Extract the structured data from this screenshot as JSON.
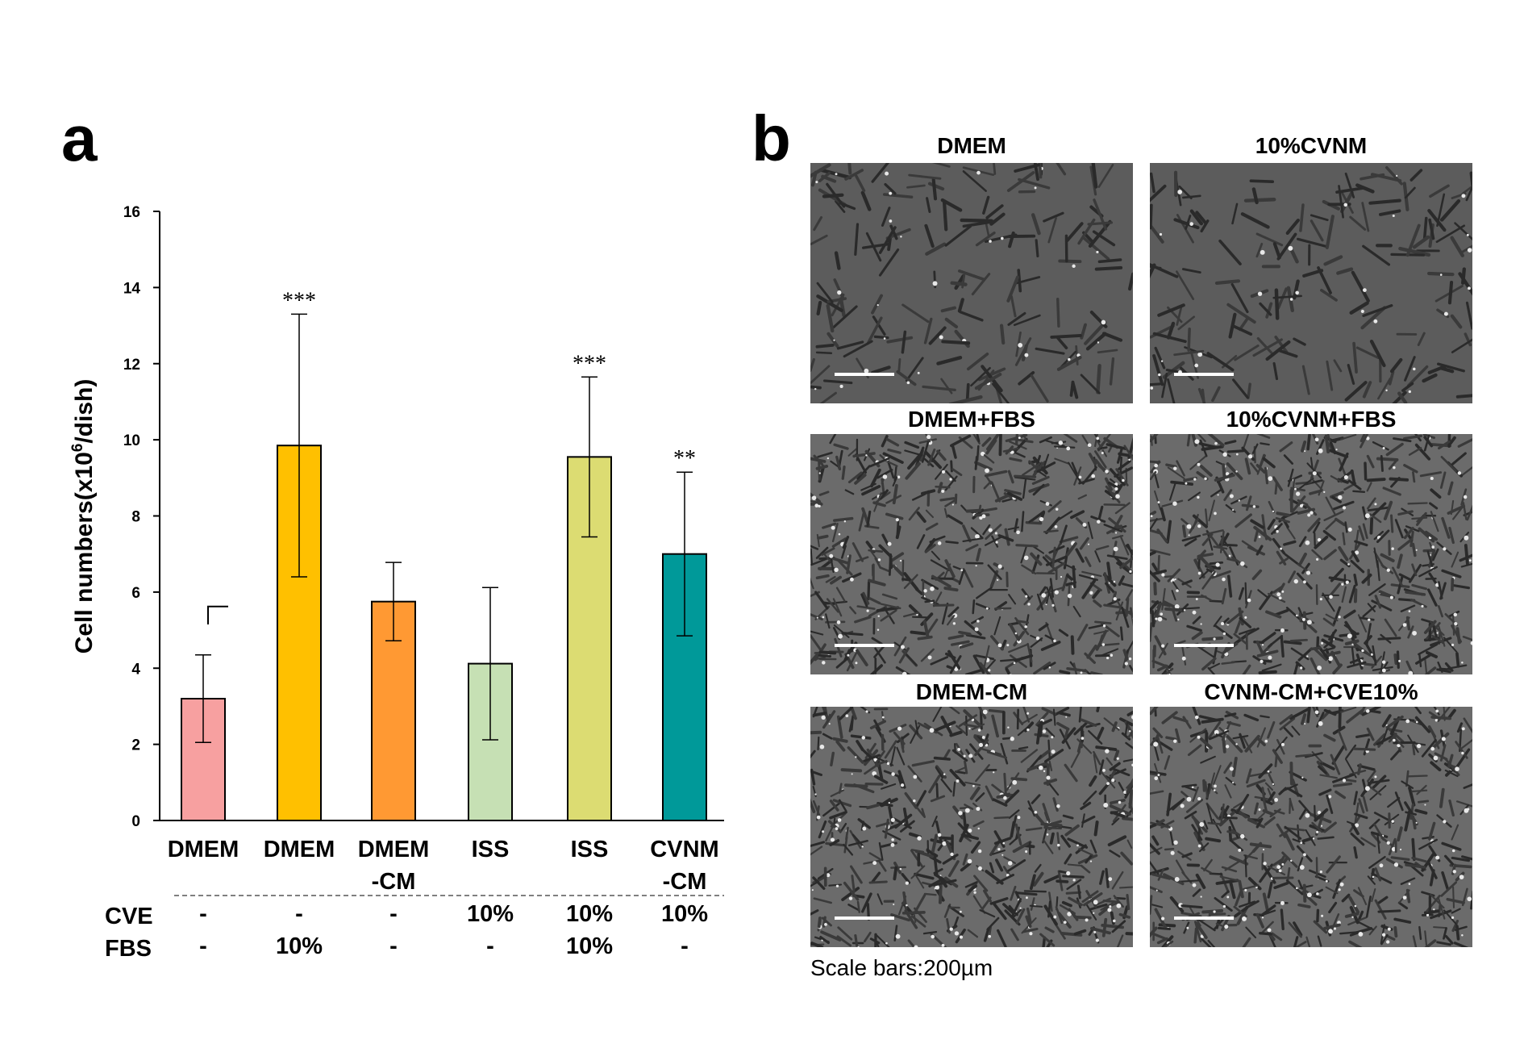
{
  "panel_a": {
    "label": "a"
  },
  "panel_b": {
    "label": "b",
    "images": [
      {
        "title": "DMEM",
        "style": "sparse"
      },
      {
        "title": "10%CVNM",
        "style": "sparse"
      },
      {
        "title": "DMEM+FBS",
        "style": "dense"
      },
      {
        "title": "10%CVNM+FBS",
        "style": "dense"
      },
      {
        "title": "DMEM-CM",
        "style": "dense"
      },
      {
        "title": "CVNM-CM+CVE10%",
        "style": "dense"
      }
    ],
    "scale_caption": "Scale bars:200µm"
  },
  "chart_data": {
    "type": "bar",
    "title": "",
    "ylabel_prefix": "Cell numbers(x10",
    "ylabel_sup": "6",
    "ylabel_suffix": "/dish)",
    "ylim": [
      0,
      16
    ],
    "yticks": [
      0,
      2,
      4,
      6,
      8,
      10,
      12,
      14,
      16
    ],
    "categories": [
      {
        "lines": [
          "DMEM"
        ]
      },
      {
        "lines": [
          "DMEM"
        ]
      },
      {
        "lines": [
          "DMEM",
          "-CM"
        ]
      },
      {
        "lines": [
          "ISS"
        ]
      },
      {
        "lines": [
          "ISS"
        ]
      },
      {
        "lines": [
          "CVNM",
          "-CM"
        ]
      }
    ],
    "values": [
      3.2,
      9.85,
      5.75,
      4.12,
      9.55,
      7.0
    ],
    "errors": [
      1.15,
      3.45,
      1.03,
      2.0,
      2.1,
      2.15
    ],
    "colors": [
      "#f7a0a0",
      "#ffc000",
      "#ff9933",
      "#c6e0b4",
      "#dcdc72",
      "#009999"
    ],
    "significance": [
      "",
      "***",
      "",
      "",
      "***",
      "**"
    ],
    "conditions": [
      {
        "label": "CVE",
        "values": [
          "-",
          "-",
          "-",
          "10%",
          "10%",
          "10%"
        ]
      },
      {
        "label": "FBS",
        "values": [
          "-",
          "10%",
          "-",
          "-",
          "10%",
          "-"
        ]
      }
    ]
  }
}
